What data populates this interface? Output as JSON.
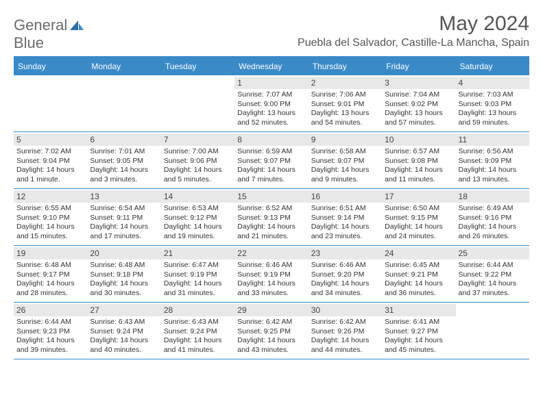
{
  "logo": {
    "word1": "General",
    "word2": "Blue"
  },
  "title": "May 2024",
  "location": "Puebla del Salvador, Castille-La Mancha, Spain",
  "dayHeaders": [
    "Sunday",
    "Monday",
    "Tuesday",
    "Wednesday",
    "Thursday",
    "Friday",
    "Saturday"
  ],
  "colors": {
    "headerBlue": "#3a8ac8",
    "dayBg": "#e8e8e8",
    "textGray": "#555555"
  },
  "weeks": [
    [
      {
        "n": "",
        "sr": "",
        "ss": "",
        "d1": "",
        "d2": ""
      },
      {
        "n": "",
        "sr": "",
        "ss": "",
        "d1": "",
        "d2": ""
      },
      {
        "n": "",
        "sr": "",
        "ss": "",
        "d1": "",
        "d2": ""
      },
      {
        "n": "1",
        "sr": "Sunrise: 7:07 AM",
        "ss": "Sunset: 9:00 PM",
        "d1": "Daylight: 13 hours",
        "d2": "and 52 minutes."
      },
      {
        "n": "2",
        "sr": "Sunrise: 7:06 AM",
        "ss": "Sunset: 9:01 PM",
        "d1": "Daylight: 13 hours",
        "d2": "and 54 minutes."
      },
      {
        "n": "3",
        "sr": "Sunrise: 7:04 AM",
        "ss": "Sunset: 9:02 PM",
        "d1": "Daylight: 13 hours",
        "d2": "and 57 minutes."
      },
      {
        "n": "4",
        "sr": "Sunrise: 7:03 AM",
        "ss": "Sunset: 9:03 PM",
        "d1": "Daylight: 13 hours",
        "d2": "and 59 minutes."
      }
    ],
    [
      {
        "n": "5",
        "sr": "Sunrise: 7:02 AM",
        "ss": "Sunset: 9:04 PM",
        "d1": "Daylight: 14 hours",
        "d2": "and 1 minute."
      },
      {
        "n": "6",
        "sr": "Sunrise: 7:01 AM",
        "ss": "Sunset: 9:05 PM",
        "d1": "Daylight: 14 hours",
        "d2": "and 3 minutes."
      },
      {
        "n": "7",
        "sr": "Sunrise: 7:00 AM",
        "ss": "Sunset: 9:06 PM",
        "d1": "Daylight: 14 hours",
        "d2": "and 5 minutes."
      },
      {
        "n": "8",
        "sr": "Sunrise: 6:59 AM",
        "ss": "Sunset: 9:07 PM",
        "d1": "Daylight: 14 hours",
        "d2": "and 7 minutes."
      },
      {
        "n": "9",
        "sr": "Sunrise: 6:58 AM",
        "ss": "Sunset: 9:07 PM",
        "d1": "Daylight: 14 hours",
        "d2": "and 9 minutes."
      },
      {
        "n": "10",
        "sr": "Sunrise: 6:57 AM",
        "ss": "Sunset: 9:08 PM",
        "d1": "Daylight: 14 hours",
        "d2": "and 11 minutes."
      },
      {
        "n": "11",
        "sr": "Sunrise: 6:56 AM",
        "ss": "Sunset: 9:09 PM",
        "d1": "Daylight: 14 hours",
        "d2": "and 13 minutes."
      }
    ],
    [
      {
        "n": "12",
        "sr": "Sunrise: 6:55 AM",
        "ss": "Sunset: 9:10 PM",
        "d1": "Daylight: 14 hours",
        "d2": "and 15 minutes."
      },
      {
        "n": "13",
        "sr": "Sunrise: 6:54 AM",
        "ss": "Sunset: 9:11 PM",
        "d1": "Daylight: 14 hours",
        "d2": "and 17 minutes."
      },
      {
        "n": "14",
        "sr": "Sunrise: 6:53 AM",
        "ss": "Sunset: 9:12 PM",
        "d1": "Daylight: 14 hours",
        "d2": "and 19 minutes."
      },
      {
        "n": "15",
        "sr": "Sunrise: 6:52 AM",
        "ss": "Sunset: 9:13 PM",
        "d1": "Daylight: 14 hours",
        "d2": "and 21 minutes."
      },
      {
        "n": "16",
        "sr": "Sunrise: 6:51 AM",
        "ss": "Sunset: 9:14 PM",
        "d1": "Daylight: 14 hours",
        "d2": "and 23 minutes."
      },
      {
        "n": "17",
        "sr": "Sunrise: 6:50 AM",
        "ss": "Sunset: 9:15 PM",
        "d1": "Daylight: 14 hours",
        "d2": "and 24 minutes."
      },
      {
        "n": "18",
        "sr": "Sunrise: 6:49 AM",
        "ss": "Sunset: 9:16 PM",
        "d1": "Daylight: 14 hours",
        "d2": "and 26 minutes."
      }
    ],
    [
      {
        "n": "19",
        "sr": "Sunrise: 6:48 AM",
        "ss": "Sunset: 9:17 PM",
        "d1": "Daylight: 14 hours",
        "d2": "and 28 minutes."
      },
      {
        "n": "20",
        "sr": "Sunrise: 6:48 AM",
        "ss": "Sunset: 9:18 PM",
        "d1": "Daylight: 14 hours",
        "d2": "and 30 minutes."
      },
      {
        "n": "21",
        "sr": "Sunrise: 6:47 AM",
        "ss": "Sunset: 9:19 PM",
        "d1": "Daylight: 14 hours",
        "d2": "and 31 minutes."
      },
      {
        "n": "22",
        "sr": "Sunrise: 6:46 AM",
        "ss": "Sunset: 9:19 PM",
        "d1": "Daylight: 14 hours",
        "d2": "and 33 minutes."
      },
      {
        "n": "23",
        "sr": "Sunrise: 6:46 AM",
        "ss": "Sunset: 9:20 PM",
        "d1": "Daylight: 14 hours",
        "d2": "and 34 minutes."
      },
      {
        "n": "24",
        "sr": "Sunrise: 6:45 AM",
        "ss": "Sunset: 9:21 PM",
        "d1": "Daylight: 14 hours",
        "d2": "and 36 minutes."
      },
      {
        "n": "25",
        "sr": "Sunrise: 6:44 AM",
        "ss": "Sunset: 9:22 PM",
        "d1": "Daylight: 14 hours",
        "d2": "and 37 minutes."
      }
    ],
    [
      {
        "n": "26",
        "sr": "Sunrise: 6:44 AM",
        "ss": "Sunset: 9:23 PM",
        "d1": "Daylight: 14 hours",
        "d2": "and 39 minutes."
      },
      {
        "n": "27",
        "sr": "Sunrise: 6:43 AM",
        "ss": "Sunset: 9:24 PM",
        "d1": "Daylight: 14 hours",
        "d2": "and 40 minutes."
      },
      {
        "n": "28",
        "sr": "Sunrise: 6:43 AM",
        "ss": "Sunset: 9:24 PM",
        "d1": "Daylight: 14 hours",
        "d2": "and 41 minutes."
      },
      {
        "n": "29",
        "sr": "Sunrise: 6:42 AM",
        "ss": "Sunset: 9:25 PM",
        "d1": "Daylight: 14 hours",
        "d2": "and 43 minutes."
      },
      {
        "n": "30",
        "sr": "Sunrise: 6:42 AM",
        "ss": "Sunset: 9:26 PM",
        "d1": "Daylight: 14 hours",
        "d2": "and 44 minutes."
      },
      {
        "n": "31",
        "sr": "Sunrise: 6:41 AM",
        "ss": "Sunset: 9:27 PM",
        "d1": "Daylight: 14 hours",
        "d2": "and 45 minutes."
      },
      {
        "n": "",
        "sr": "",
        "ss": "",
        "d1": "",
        "d2": ""
      }
    ]
  ]
}
